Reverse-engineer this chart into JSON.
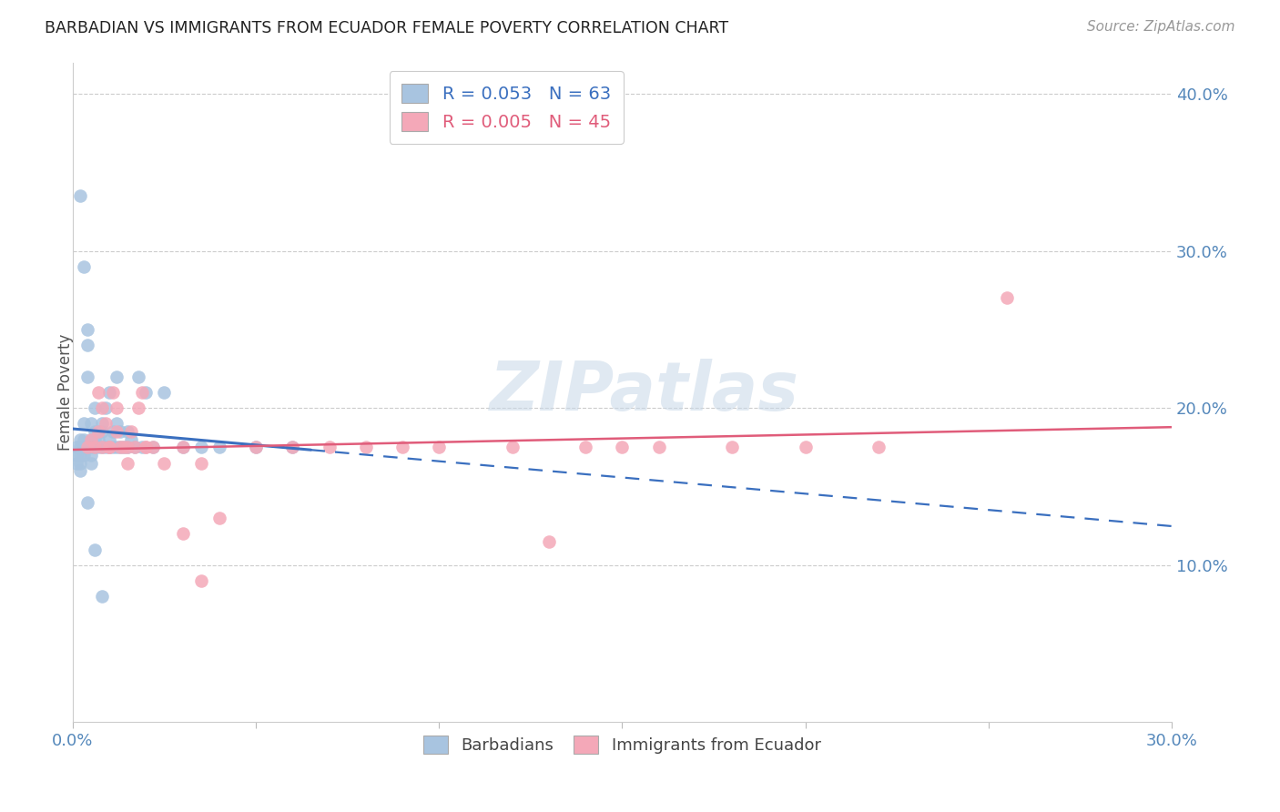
{
  "title": "BARBADIAN VS IMMIGRANTS FROM ECUADOR FEMALE POVERTY CORRELATION CHART",
  "source": "Source: ZipAtlas.com",
  "ylabel": "Female Poverty",
  "xlim": [
    0,
    0.3
  ],
  "ylim": [
    0,
    0.42
  ],
  "blue_R": 0.053,
  "blue_N": 63,
  "pink_R": 0.005,
  "pink_N": 45,
  "blue_color": "#a8c4e0",
  "pink_color": "#f4a8b8",
  "blue_line_color": "#3a6fbf",
  "pink_line_color": "#e05c7a",
  "legend_label_blue": "Barbadians",
  "legend_label_pink": "Immigrants from Ecuador",
  "blue_x": [
    0.001,
    0.001,
    0.001,
    0.002,
    0.002,
    0.002,
    0.002,
    0.002,
    0.003,
    0.003,
    0.003,
    0.003,
    0.004,
    0.004,
    0.004,
    0.004,
    0.005,
    0.005,
    0.005,
    0.005,
    0.005,
    0.006,
    0.006,
    0.006,
    0.006,
    0.007,
    0.007,
    0.007,
    0.008,
    0.008,
    0.008,
    0.009,
    0.009,
    0.01,
    0.01,
    0.01,
    0.011,
    0.011,
    0.012,
    0.012,
    0.013,
    0.013,
    0.014,
    0.015,
    0.015,
    0.016,
    0.017,
    0.018,
    0.019,
    0.02,
    0.022,
    0.025,
    0.03,
    0.035,
    0.04,
    0.05,
    0.06,
    0.002,
    0.003,
    0.012,
    0.004,
    0.006,
    0.008
  ],
  "blue_y": [
    0.175,
    0.17,
    0.165,
    0.17,
    0.165,
    0.18,
    0.175,
    0.16,
    0.175,
    0.17,
    0.18,
    0.19,
    0.175,
    0.22,
    0.24,
    0.25,
    0.175,
    0.17,
    0.165,
    0.18,
    0.19,
    0.175,
    0.18,
    0.185,
    0.2,
    0.175,
    0.18,
    0.185,
    0.175,
    0.185,
    0.19,
    0.175,
    0.2,
    0.175,
    0.18,
    0.21,
    0.175,
    0.185,
    0.175,
    0.19,
    0.175,
    0.185,
    0.175,
    0.175,
    0.185,
    0.18,
    0.175,
    0.22,
    0.175,
    0.21,
    0.175,
    0.21,
    0.175,
    0.175,
    0.175,
    0.175,
    0.175,
    0.335,
    0.29,
    0.22,
    0.14,
    0.11,
    0.08
  ],
  "pink_x": [
    0.005,
    0.006,
    0.007,
    0.007,
    0.008,
    0.009,
    0.01,
    0.011,
    0.012,
    0.012,
    0.013,
    0.014,
    0.015,
    0.016,
    0.017,
    0.018,
    0.019,
    0.02,
    0.022,
    0.025,
    0.03,
    0.035,
    0.04,
    0.05,
    0.06,
    0.07,
    0.08,
    0.09,
    0.1,
    0.12,
    0.14,
    0.15,
    0.16,
    0.18,
    0.2,
    0.22,
    0.004,
    0.008,
    0.01,
    0.015,
    0.02,
    0.03,
    0.035,
    0.255,
    0.13
  ],
  "pink_y": [
    0.18,
    0.175,
    0.21,
    0.185,
    0.2,
    0.19,
    0.175,
    0.21,
    0.185,
    0.2,
    0.175,
    0.175,
    0.165,
    0.185,
    0.175,
    0.2,
    0.21,
    0.175,
    0.175,
    0.165,
    0.175,
    0.165,
    0.13,
    0.175,
    0.175,
    0.175,
    0.175,
    0.175,
    0.175,
    0.175,
    0.175,
    0.175,
    0.175,
    0.175,
    0.175,
    0.175,
    0.175,
    0.175,
    0.175,
    0.175,
    0.175,
    0.12,
    0.09,
    0.27,
    0.115
  ]
}
